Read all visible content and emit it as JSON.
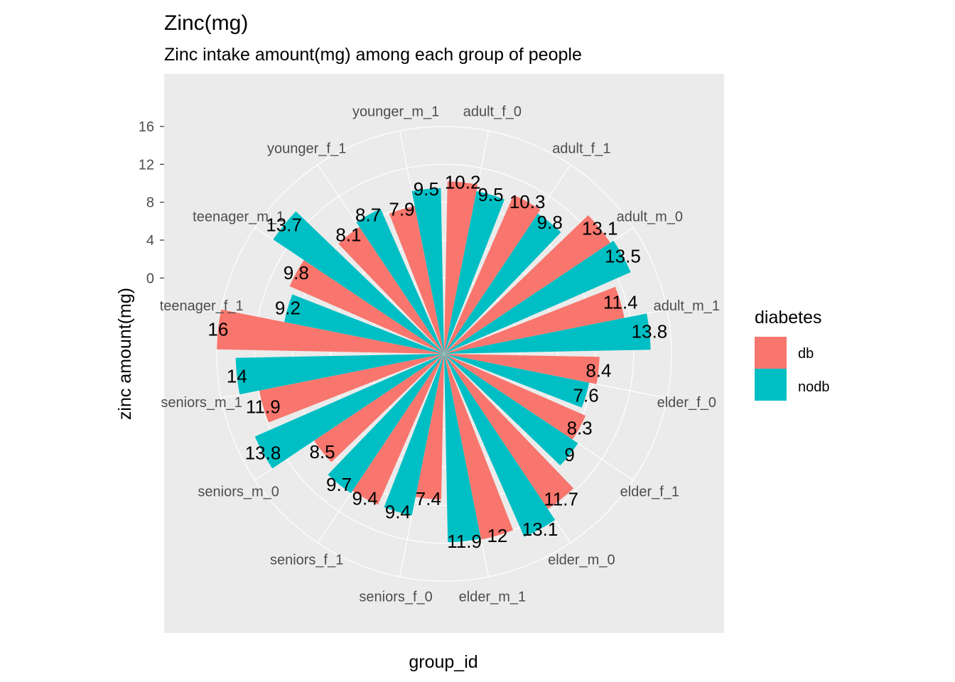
{
  "chart_data": {
    "type": "bar",
    "coord": "polar",
    "title": "Zinc(mg)",
    "subtitle": "Zinc intake amount(mg) among each group of people",
    "xlabel": "group_id",
    "ylabel": "zinc amount(mg)",
    "yticks": [
      "0",
      "4",
      "8",
      "12",
      "16"
    ],
    "ylim": [
      -8,
      16
    ],
    "categories": [
      "adult_f_0",
      "adult_f_1",
      "adult_m_0",
      "adult_m_1",
      "elder_f_0",
      "elder_f_1",
      "elder_m_0",
      "elder_m_1",
      "seniors_f_0",
      "seniors_f_1",
      "seniors_m_0",
      "seniors_m_1",
      "teenager_f_1",
      "teenager_m_1",
      "younger_f_1",
      "younger_m_1"
    ],
    "series": [
      {
        "name": "db",
        "color": "#F8766D",
        "values": [
          10.2,
          10.3,
          13.1,
          11.4,
          8.4,
          8.3,
          11.7,
          12,
          7.4,
          9.4,
          8.5,
          11.9,
          16,
          9.8,
          8.1,
          7.9
        ]
      },
      {
        "name": "nodb",
        "color": "#00BFC4",
        "values": [
          9.5,
          9.8,
          13.5,
          13.8,
          7.6,
          9,
          13.1,
          11.9,
          9.4,
          9.7,
          13.8,
          14,
          9.2,
          13.7,
          8.7,
          9.5
        ]
      }
    ],
    "value_labels": {
      "db": [
        "10.2",
        "10.3",
        "13.1",
        "11.4",
        "8.4",
        "8.3",
        "11.7",
        "12",
        "7.4",
        "9.4",
        "8.5",
        "11.9",
        "16",
        "9.8",
        "8.1",
        "7.9"
      ],
      "nodb": [
        "9.5",
        "9.8",
        "13.5",
        "13.8",
        "7.6",
        "9",
        "13.1",
        "11.9",
        "9.4",
        "9.7",
        "13.8",
        "14",
        "9.2",
        "13.7",
        "8.7",
        "9.5"
      ]
    },
    "legend": {
      "title": "diabetes",
      "position": "right"
    },
    "grid": true,
    "panel_background": "#EBEBEB"
  }
}
